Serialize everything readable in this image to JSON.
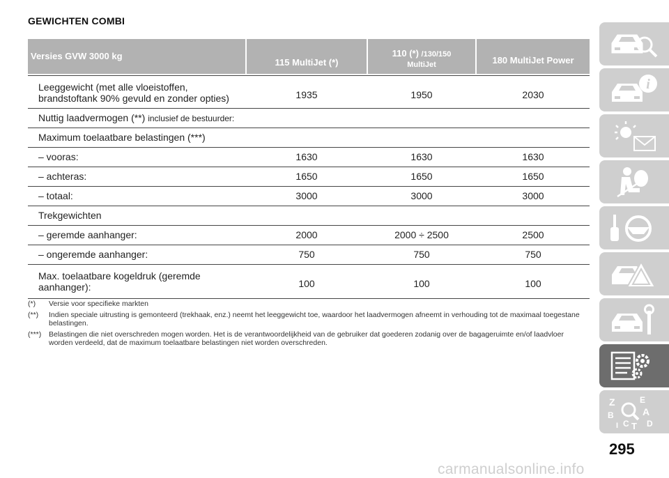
{
  "title": "GEWICHTEN COMBI",
  "header": {
    "col0": "Versies GVW 3000 kg",
    "col1": "115 MultiJet (*)",
    "col2_main": "110 (*)",
    "col2_small": "/130/150",
    "col2_line2": "MultiJet",
    "col3": "180 MultiJet Power"
  },
  "rows": [
    {
      "label_line1": "Leeggewicht (met alle vloeistoffen,",
      "label_line2": "brandstoftank 90% gevuld en zonder opties)",
      "v1": "1935",
      "v2": "1950",
      "v3": "2030"
    },
    {
      "label": "Nuttig laadvermogen (**)",
      "label_small": "inclusief de bestuurder:"
    },
    {
      "label": "Maximum toelaatbare belastingen (***)"
    },
    {
      "label": "– vooras:",
      "v1": "1630",
      "v2": "1630",
      "v3": "1630"
    },
    {
      "label": "– achteras:",
      "v1": "1650",
      "v2": "1650",
      "v3": "1650"
    },
    {
      "label": "– totaal:",
      "v1": "3000",
      "v2": "3000",
      "v3": "3000"
    },
    {
      "label": "Trekgewichten"
    },
    {
      "label": "– geremde aanhanger:",
      "v1": "2000",
      "v2": "2000 ÷ 2500",
      "v3": "2500"
    },
    {
      "label": "– ongeremde aanhanger:",
      "v1": "750",
      "v2": "750",
      "v3": "750"
    },
    {
      "label_line1": "Max. toelaatbare kogeldruk (geremde",
      "label_line2": "aanhanger):",
      "v1": "100",
      "v2": "100",
      "v3": "100"
    }
  ],
  "footnotes": [
    {
      "mark": "(*)",
      "text": "Versie voor specifieke markten"
    },
    {
      "mark": "(**)",
      "text": "Indien speciale uitrusting is gemonteerd (trekhaak, enz.) neemt het leeggewicht toe, waardoor het laadvermogen afneemt in verhouding tot de maximaal toegestane belastingen."
    },
    {
      "mark": "(***)",
      "text": "Belastingen die niet overschreden mogen worden. Het is de verantwoordelijkheid van de gebruiker dat goederen zodanig over de bagageruimte en/of laadvloer worden verdeeld, dat de maximum toelaatbare belastingen niet worden overschreden."
    }
  ],
  "sidebar": {
    "tabs": [
      {
        "icon": "car-search-icon"
      },
      {
        "icon": "car-info-icon"
      },
      {
        "icon": "warning-light-mail-icon"
      },
      {
        "icon": "airbag-passenger-icon"
      },
      {
        "icon": "steering-wheel-key-icon"
      },
      {
        "icon": "car-warning-triangle-icon"
      },
      {
        "icon": "car-wrench-icon"
      },
      {
        "icon": "list-gears-icon",
        "active": true
      },
      {
        "icon": "alphabet-search-icon",
        "letters": [
          "Z",
          "E",
          "A",
          "B",
          "C",
          "D",
          "T",
          "I"
        ]
      }
    ]
  },
  "page_number": "295",
  "watermark": "carmanualsonline.info"
}
